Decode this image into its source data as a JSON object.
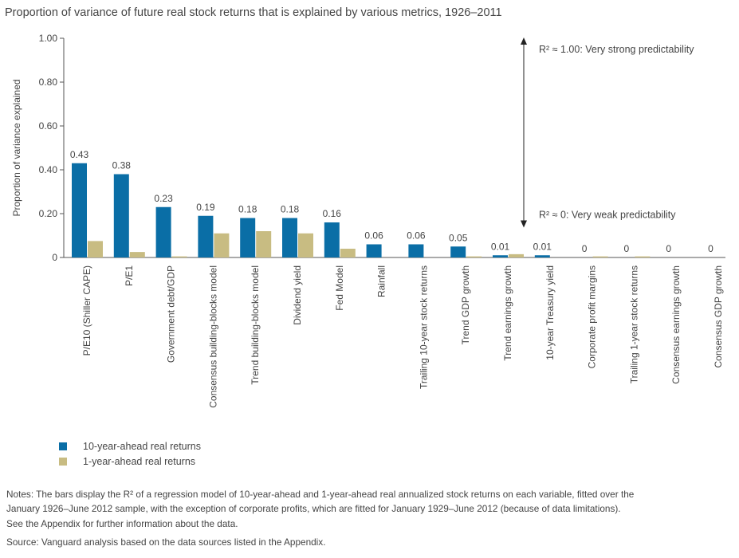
{
  "title": "Proportion of variance of future real stock returns that is explained by various metrics, 1926–2011",
  "legend": {
    "ten_year": "10-year-ahead real returns",
    "one_year": "1-year-ahead real returns"
  },
  "notes": {
    "line1": "Notes: The bars display the R² of a regression model of 10-year-ahead and 1-year-ahead real annualized stock returns on each variable, fitted over the",
    "line2": "January 1926–June 2012 sample, with the exception of corporate profits, which are fitted for January 1929–June 2012 (because of data limitations).",
    "line3": "See the Appendix for further information about the data.",
    "source": "Source: Vanguard analysis based on the data sources listed in the Appendix."
  },
  "chart_data": {
    "type": "bar",
    "ylabel": "Proportion of variance explained",
    "ylim": [
      0,
      1.0
    ],
    "yticks": [
      "0",
      "0.20",
      "0.40",
      "0.60",
      "0.80",
      "1.00"
    ],
    "categories": [
      "P/E10 (Shiller CAPE)",
      "P/E1",
      "Government debt/GDP",
      "Consensus building-blocks model",
      "Trend building-blocks model",
      "Dividend yield",
      "Fed Model",
      "Rainfall",
      "Trailing 10-year stock returns",
      "Trend GDP growth",
      "Trend earnings growth",
      "10-year Treasury yield",
      "Corporate profit margins",
      "Trailing 1-year stock returns",
      "Consensus earnings growth",
      "Consensus GDP growth"
    ],
    "series": [
      {
        "name": "10-year-ahead real returns",
        "color": "#0a6ea6",
        "values": [
          0.43,
          0.38,
          0.23,
          0.19,
          0.18,
          0.18,
          0.16,
          0.06,
          0.06,
          0.05,
          0.01,
          0.01,
          0,
          0,
          0,
          0
        ],
        "labels": [
          "0.43",
          "0.38",
          "0.23",
          "0.19",
          "0.18",
          "0.18",
          "0.16",
          "0.06",
          "0.06",
          "0.05",
          "0.01",
          "0.01",
          "0",
          "0",
          "0",
          "0"
        ]
      },
      {
        "name": "1-year-ahead real returns",
        "color": "#c8bc82",
        "values": [
          0.075,
          0.025,
          0.005,
          0.11,
          0.12,
          0.11,
          0.04,
          0.0,
          0.0,
          0.005,
          0.015,
          0.0,
          0.005,
          0.005,
          0.0,
          0.0
        ]
      }
    ],
    "annotations": {
      "strong": "R² ≈ 1.00: Very strong predictability",
      "weak": "R² ≈ 0: Very weak predictability"
    },
    "grid": false,
    "legend_position": "bottom-left"
  }
}
